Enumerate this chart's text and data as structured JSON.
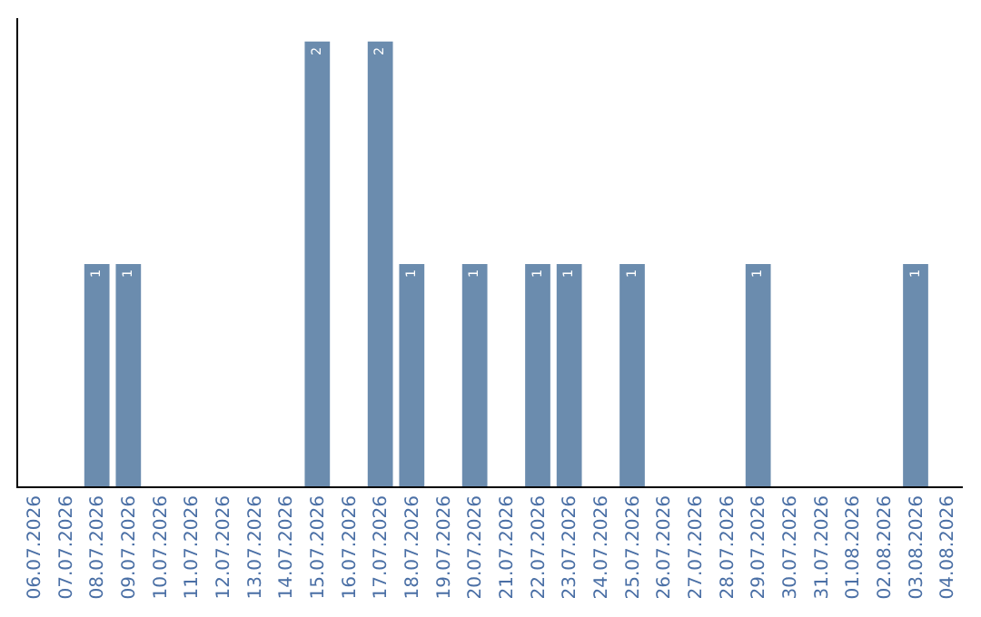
{
  "chart_data": {
    "type": "bar",
    "categories": [
      "06.07.2026",
      "07.07.2026",
      "08.07.2026",
      "09.07.2026",
      "10.07.2026",
      "11.07.2026",
      "12.07.2026",
      "13.07.2026",
      "14.07.2026",
      "15.07.2026",
      "16.07.2026",
      "17.07.2026",
      "18.07.2026",
      "19.07.2026",
      "20.07.2026",
      "21.07.2026",
      "22.07.2026",
      "23.07.2026",
      "24.07.2026",
      "25.07.2026",
      "26.07.2026",
      "27.07.2026",
      "28.07.2026",
      "29.07.2026",
      "30.07.2026",
      "31.07.2026",
      "01.08.2026",
      "02.08.2026",
      "03.08.2026",
      "04.08.2026"
    ],
    "values": [
      0,
      0,
      1,
      1,
      0,
      0,
      0,
      0,
      0,
      2,
      0,
      2,
      1,
      0,
      1,
      0,
      1,
      1,
      0,
      1,
      0,
      0,
      0,
      1,
      0,
      0,
      0,
      0,
      1,
      0
    ],
    "value_labels": [
      null,
      null,
      "1",
      "1",
      null,
      null,
      null,
      null,
      null,
      "2",
      null,
      "2",
      "1",
      null,
      "1",
      null,
      "1",
      "1",
      null,
      "1",
      null,
      null,
      null,
      "1",
      null,
      null,
      null,
      null,
      "1",
      null
    ],
    "color": "#6b8cae",
    "grid": false,
    "legend": false,
    "tick_labels": "x"
  }
}
